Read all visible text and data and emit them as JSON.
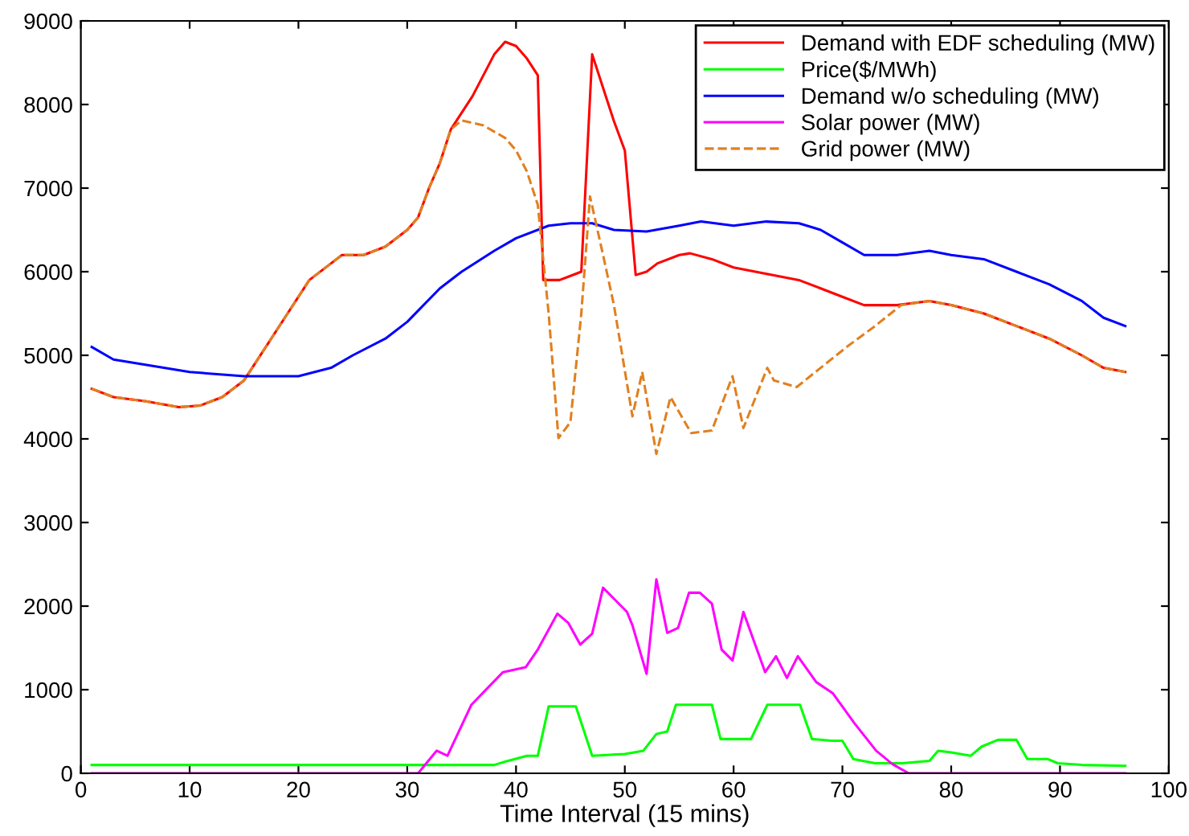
{
  "chart_data": {
    "type": "line",
    "xlabel": "Time Interval (15 mins)",
    "xlim": [
      0,
      100
    ],
    "ylim": [
      0,
      9000
    ],
    "xticks": [
      0,
      10,
      20,
      30,
      40,
      50,
      60,
      70,
      80,
      90,
      100
    ],
    "yticks": [
      0,
      1000,
      2000,
      3000,
      4000,
      5000,
      6000,
      7000,
      8000,
      9000
    ],
    "grid": false,
    "legend": "top right",
    "marker": "none",
    "series": [
      {
        "name": "Demand with EDF scheduling (MW)",
        "color": "#ff0000",
        "line_style": "solid",
        "x": [
          1,
          3,
          6,
          9,
          11,
          13,
          15,
          17,
          19,
          21,
          23,
          24,
          26,
          28,
          30,
          31,
          32,
          33,
          34,
          36,
          38,
          39,
          40,
          41,
          42,
          42.5,
          44,
          45,
          46,
          47,
          48,
          49,
          50,
          51,
          52,
          53,
          55,
          56,
          58,
          60,
          62,
          64,
          66,
          68,
          70,
          72,
          75,
          78,
          80,
          83,
          86,
          89,
          92,
          94,
          96
        ],
        "values": [
          4600,
          4500,
          4450,
          4380,
          4400,
          4500,
          4700,
          5100,
          5500,
          5900,
          6100,
          6200,
          6200,
          6300,
          6500,
          6650,
          7000,
          7300,
          7700,
          8100,
          8600,
          8750,
          8700,
          8550,
          8350,
          5900,
          5900,
          5950,
          6000,
          8600,
          8200,
          7800,
          7450,
          5960,
          6000,
          6100,
          6200,
          6220,
          6150,
          6050,
          6000,
          5950,
          5900,
          5800,
          5700,
          5600,
          5600,
          5650,
          5600,
          5500,
          5350,
          5200,
          5000,
          4850,
          4800
        ]
      },
      {
        "name": "Price($/MWh)",
        "color": "#00ff00",
        "line_style": "solid",
        "x": [
          1,
          10,
          20,
          30,
          38,
          39,
          41,
          42,
          43,
          45.5,
          47,
          50,
          51.7,
          52.9,
          53.9,
          54.7,
          58,
          58.8,
          61.6,
          63.1,
          66.1,
          67.2,
          69,
          70,
          71,
          73,
          75.5,
          78,
          78.8,
          80,
          81.8,
          82.8,
          84.3,
          86,
          87,
          88.9,
          89.8,
          92,
          96
        ],
        "values": [
          100,
          100,
          100,
          100,
          100,
          140,
          210,
          210,
          800,
          800,
          210,
          230,
          270,
          470,
          500,
          820,
          820,
          410,
          410,
          820,
          820,
          410,
          390,
          390,
          170,
          120,
          120,
          150,
          270,
          250,
          210,
          320,
          400,
          400,
          170,
          170,
          120,
          100,
          90
        ]
      },
      {
        "name": "Demand w/o scheduling (MW)",
        "color": "#0000ff",
        "line_style": "solid",
        "x": [
          1,
          3,
          10,
          15,
          20,
          23,
          25,
          28,
          30,
          33,
          35,
          38,
          40,
          43,
          45,
          47,
          49,
          52,
          55,
          57,
          60,
          63,
          66,
          68,
          70,
          72,
          75,
          78,
          80,
          83,
          86,
          89,
          92,
          94,
          96
        ],
        "values": [
          5100,
          4950,
          4800,
          4750,
          4750,
          4850,
          5000,
          5200,
          5400,
          5800,
          6000,
          6250,
          6400,
          6550,
          6580,
          6580,
          6500,
          6480,
          6550,
          6600,
          6550,
          6600,
          6580,
          6500,
          6350,
          6200,
          6200,
          6250,
          6200,
          6150,
          6000,
          5850,
          5650,
          5450,
          5350
        ]
      },
      {
        "name": "Solar power (MW)",
        "color": "#ff00ff",
        "line_style": "solid",
        "x": [
          1,
          10,
          20,
          31,
          32.7,
          33.7,
          35.9,
          38.8,
          40.9,
          42,
          43.8,
          44.8,
          45.9,
          47,
          48,
          50.2,
          50.7,
          52,
          52.9,
          53.9,
          54.9,
          55.9,
          56.9,
          58,
          58.9,
          59.9,
          60.9,
          62.9,
          63.9,
          64.9,
          65.9,
          67.6,
          69.1,
          71.1,
          73.1,
          74.6,
          76.1,
          80,
          90,
          96
        ],
        "values": [
          0,
          0,
          0,
          0,
          270,
          210,
          820,
          1210,
          1270,
          1480,
          1910,
          1800,
          1540,
          1670,
          2220,
          1930,
          1770,
          1190,
          2320,
          1680,
          1740,
          2160,
          2160,
          2030,
          1480,
          1350,
          1930,
          1210,
          1400,
          1140,
          1400,
          1090,
          960,
          600,
          270,
          110,
          0,
          0,
          0,
          0
        ]
      },
      {
        "name": "Grid power (MW)",
        "color": "#e08020",
        "line_style": "dashed",
        "x": [
          1,
          3,
          6,
          9,
          11,
          13,
          15,
          17,
          19,
          21,
          23,
          24,
          26,
          28,
          30,
          31,
          32,
          33,
          34,
          35,
          37,
          39,
          40,
          41,
          42,
          43,
          43.9,
          45,
          46,
          46.8,
          48,
          49,
          50.7,
          51.6,
          52.9,
          54.2,
          56.1,
          58,
          59.9,
          60.9,
          63.1,
          63.7,
          65.8,
          68,
          70.5,
          73,
          75.4,
          78,
          80,
          83,
          86,
          89,
          92,
          94,
          96
        ],
        "values": [
          4600,
          4500,
          4450,
          4380,
          4400,
          4500,
          4700,
          5100,
          5500,
          5900,
          6100,
          6200,
          6200,
          6300,
          6500,
          6650,
          7000,
          7300,
          7700,
          7810,
          7750,
          7600,
          7450,
          7200,
          6800,
          5500,
          4010,
          4200,
          5500,
          6900,
          6200,
          5600,
          4270,
          4800,
          3820,
          4500,
          4070,
          4100,
          4750,
          4130,
          4850,
          4700,
          4620,
          4850,
          5110,
          5350,
          5600,
          5650,
          5600,
          5500,
          5350,
          5200,
          5000,
          4850,
          4800
        ]
      }
    ]
  }
}
